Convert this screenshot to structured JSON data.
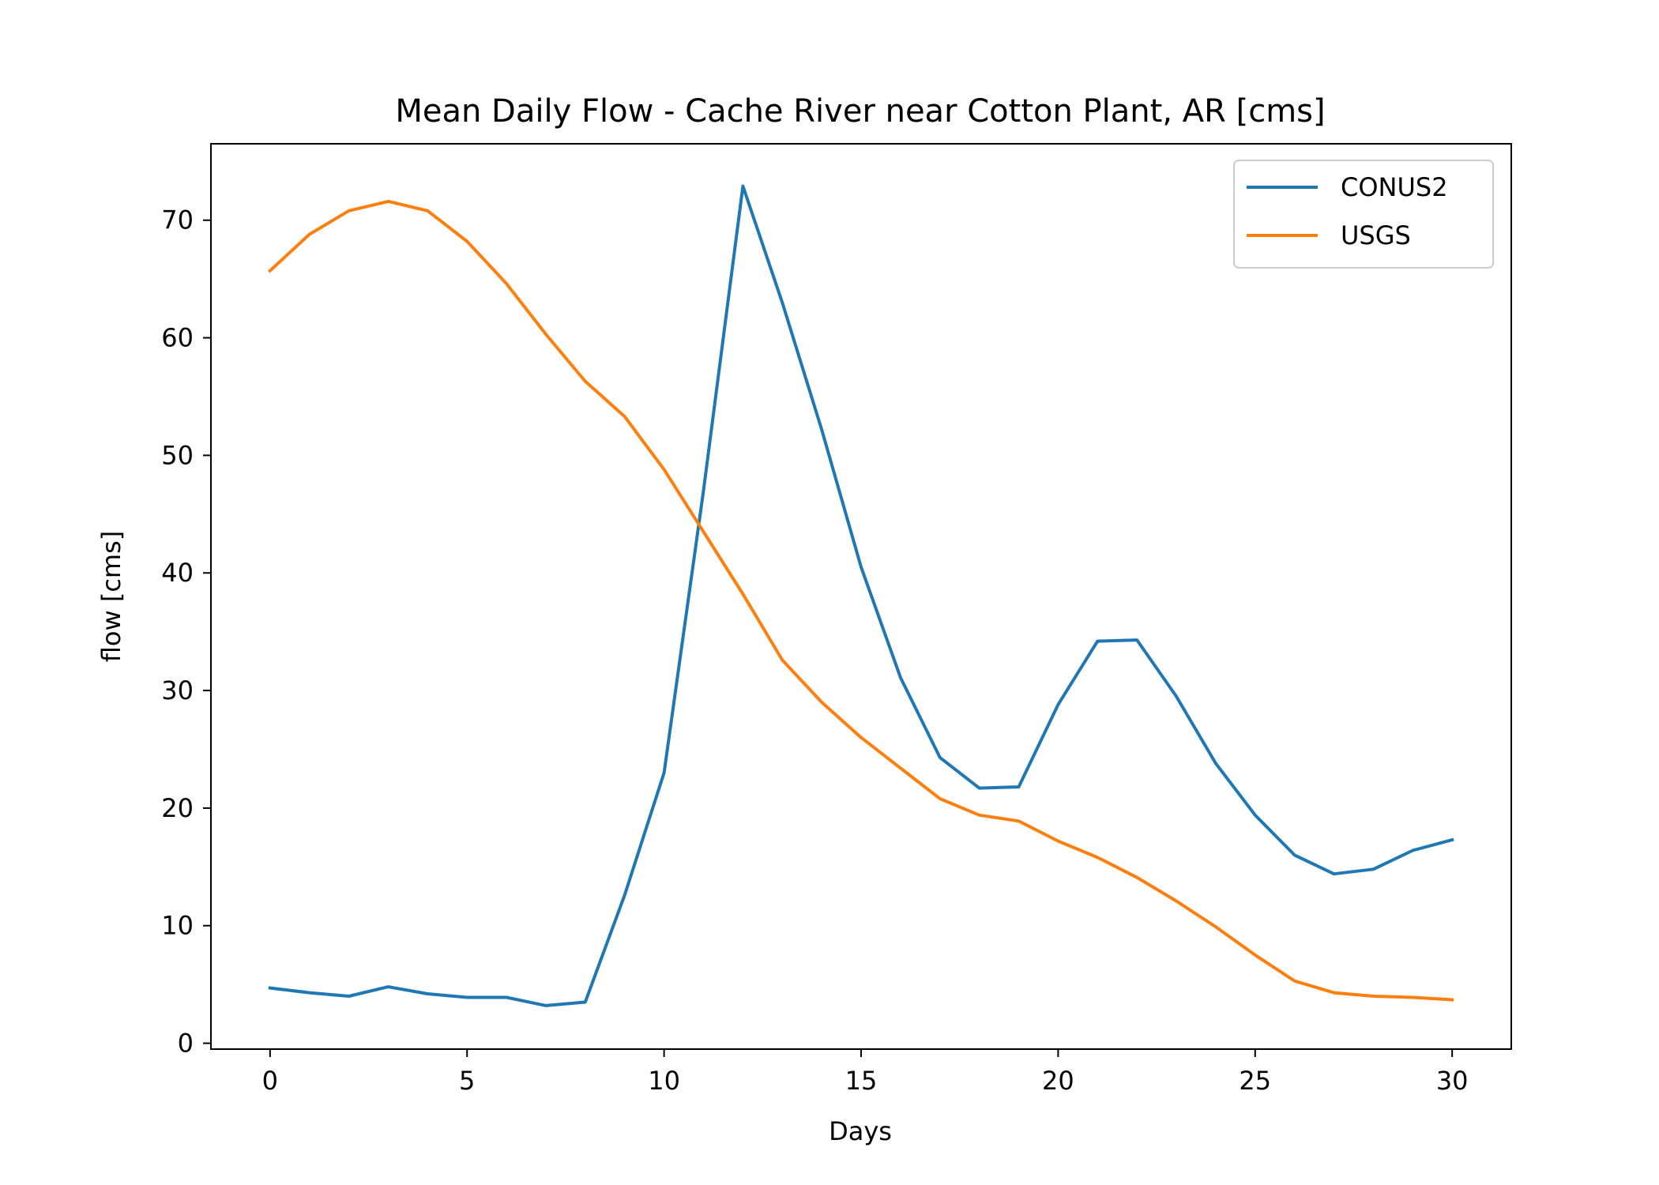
{
  "chart_data": {
    "type": "line",
    "title": "Mean Daily Flow - Cache River near Cotton Plant, AR [cms]",
    "xlabel": "Days",
    "ylabel": "flow [cms]",
    "xlim": [
      -1.5,
      31.5
    ],
    "ylim": [
      -0.5,
      76.5
    ],
    "xticks": [
      0,
      5,
      10,
      15,
      20,
      25,
      30
    ],
    "yticks": [
      0,
      10,
      20,
      30,
      40,
      50,
      60,
      70
    ],
    "grid": false,
    "legend_position": "top-right",
    "x": [
      0,
      1,
      2,
      3,
      4,
      5,
      6,
      7,
      8,
      9,
      10,
      11,
      12,
      13,
      14,
      15,
      16,
      17,
      18,
      19,
      20,
      21,
      22,
      23,
      24,
      25,
      26,
      27,
      28,
      29,
      30
    ],
    "series": [
      {
        "name": "CONUS2",
        "color": "#1f77b4",
        "values": [
          4.7,
          4.3,
          4.0,
          4.8,
          4.2,
          3.9,
          3.9,
          3.2,
          3.5,
          12.6,
          23.0,
          47.0,
          72.9,
          63.0,
          52.2,
          40.5,
          31.1,
          24.3,
          21.7,
          21.8,
          28.8,
          34.2,
          34.3,
          29.5,
          23.8,
          19.4,
          16.0,
          14.4,
          14.8,
          16.4,
          17.3
        ]
      },
      {
        "name": "USGS",
        "color": "#ff7f0e",
        "values": [
          65.7,
          68.8,
          70.8,
          71.6,
          70.8,
          68.2,
          64.6,
          60.3,
          56.3,
          53.3,
          48.8,
          43.5,
          38.2,
          32.6,
          29.0,
          26.0,
          23.4,
          20.8,
          19.4,
          18.9,
          17.2,
          15.8,
          14.1,
          12.1,
          9.9,
          7.5,
          5.3,
          4.3,
          4.0,
          3.9,
          3.7
        ]
      }
    ]
  }
}
